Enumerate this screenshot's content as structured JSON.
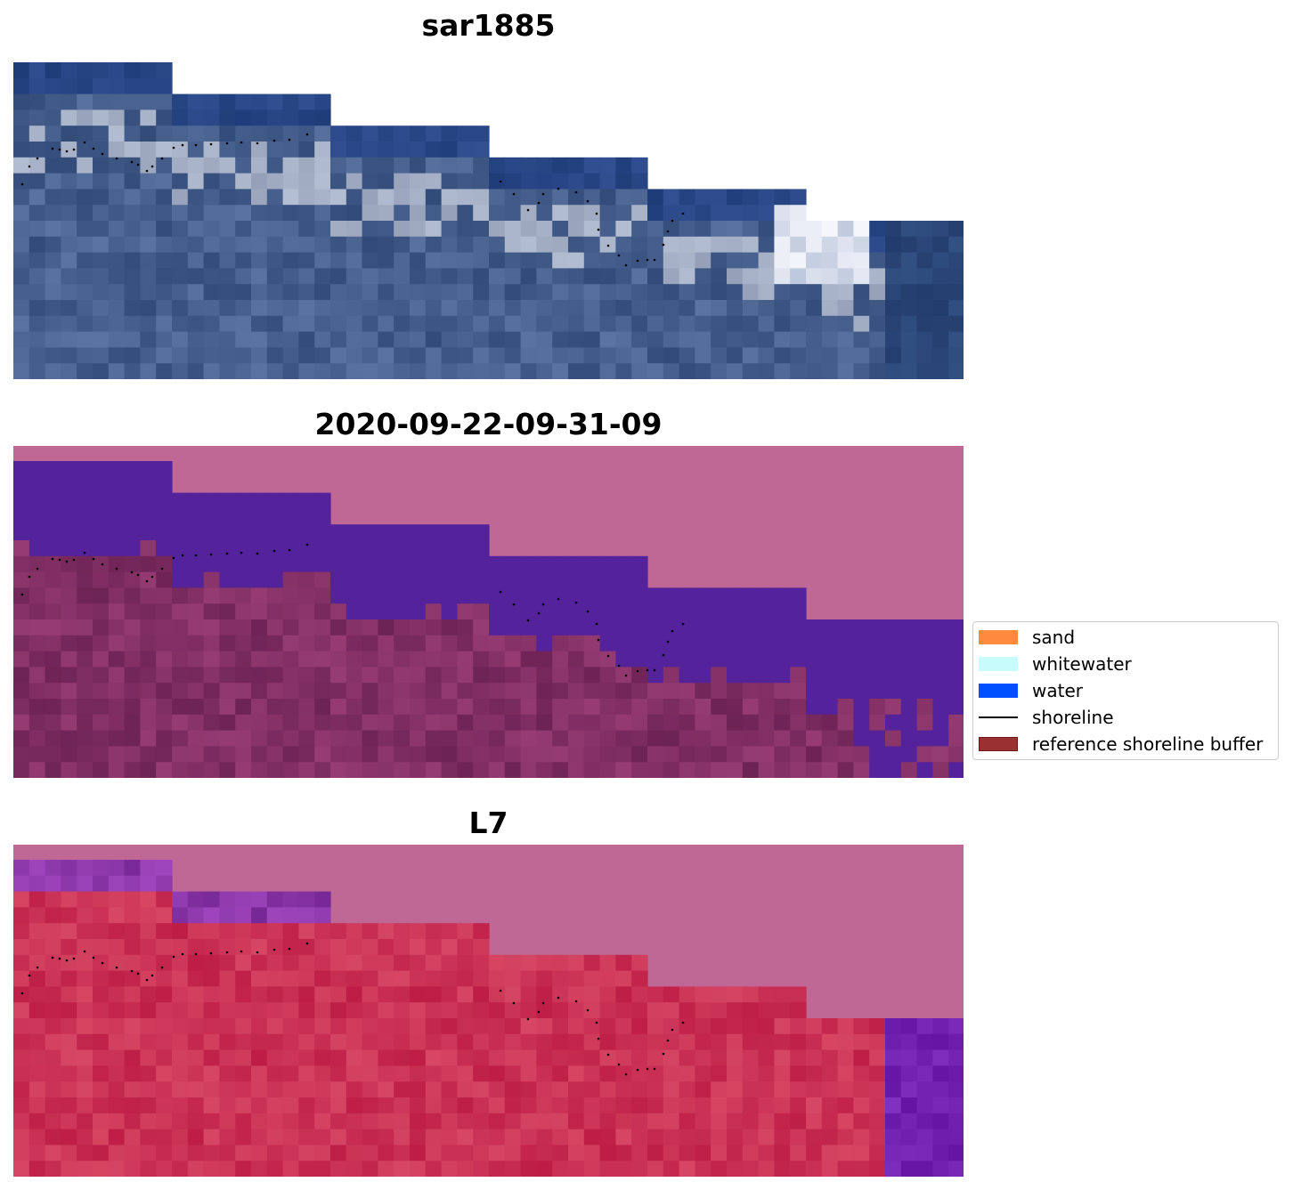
{
  "panels": [
    {
      "title": "sar1885",
      "style": "rgb"
    },
    {
      "title": "2020-09-22-09-31-09",
      "style": "classified"
    },
    {
      "title": "L7",
      "style": "index"
    }
  ],
  "legend": {
    "items": [
      {
        "label": "sand",
        "color": "#ff8a3d",
        "kind": "patch"
      },
      {
        "label": "whitewater",
        "color": "#c8fcfc",
        "kind": "patch"
      },
      {
        "label": "water",
        "color": "#0050ff",
        "kind": "patch"
      },
      {
        "label": "shoreline",
        "color": "#000000",
        "kind": "line"
      },
      {
        "label": "reference shoreline buffer",
        "color": "#9b3030",
        "kind": "patch"
      }
    ]
  },
  "colors": {
    "nodata": "#bf6896",
    "classified_water": "#54229a",
    "rgb_water": "#1e4380",
    "index_water": "#7a1ea8",
    "index_land": "#c21a4a"
  }
}
